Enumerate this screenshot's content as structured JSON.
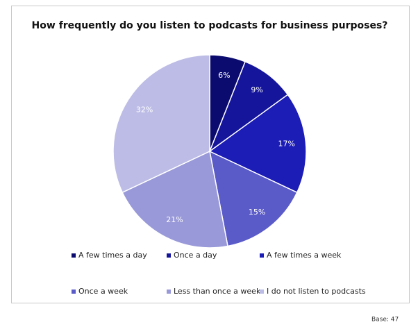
{
  "chart_data": {
    "type": "pie",
    "title": "How frequently do you listen to podcasts for business purposes?",
    "categories": [
      "A few times a day",
      "Once a day",
      "A few times a week",
      "Once a week",
      "Less than once a week",
      "I do not listen to podcasts"
    ],
    "values": [
      6,
      9,
      17,
      15,
      21,
      32
    ],
    "value_labels": [
      "6%",
      "9%",
      "17%",
      "15%",
      "21%",
      "32%"
    ],
    "colors": [
      "#0b0b6f",
      "#15159c",
      "#1c1cb6",
      "#5a5ac9",
      "#9999d9",
      "#bcbce6"
    ],
    "footnote": "Base: 47"
  }
}
